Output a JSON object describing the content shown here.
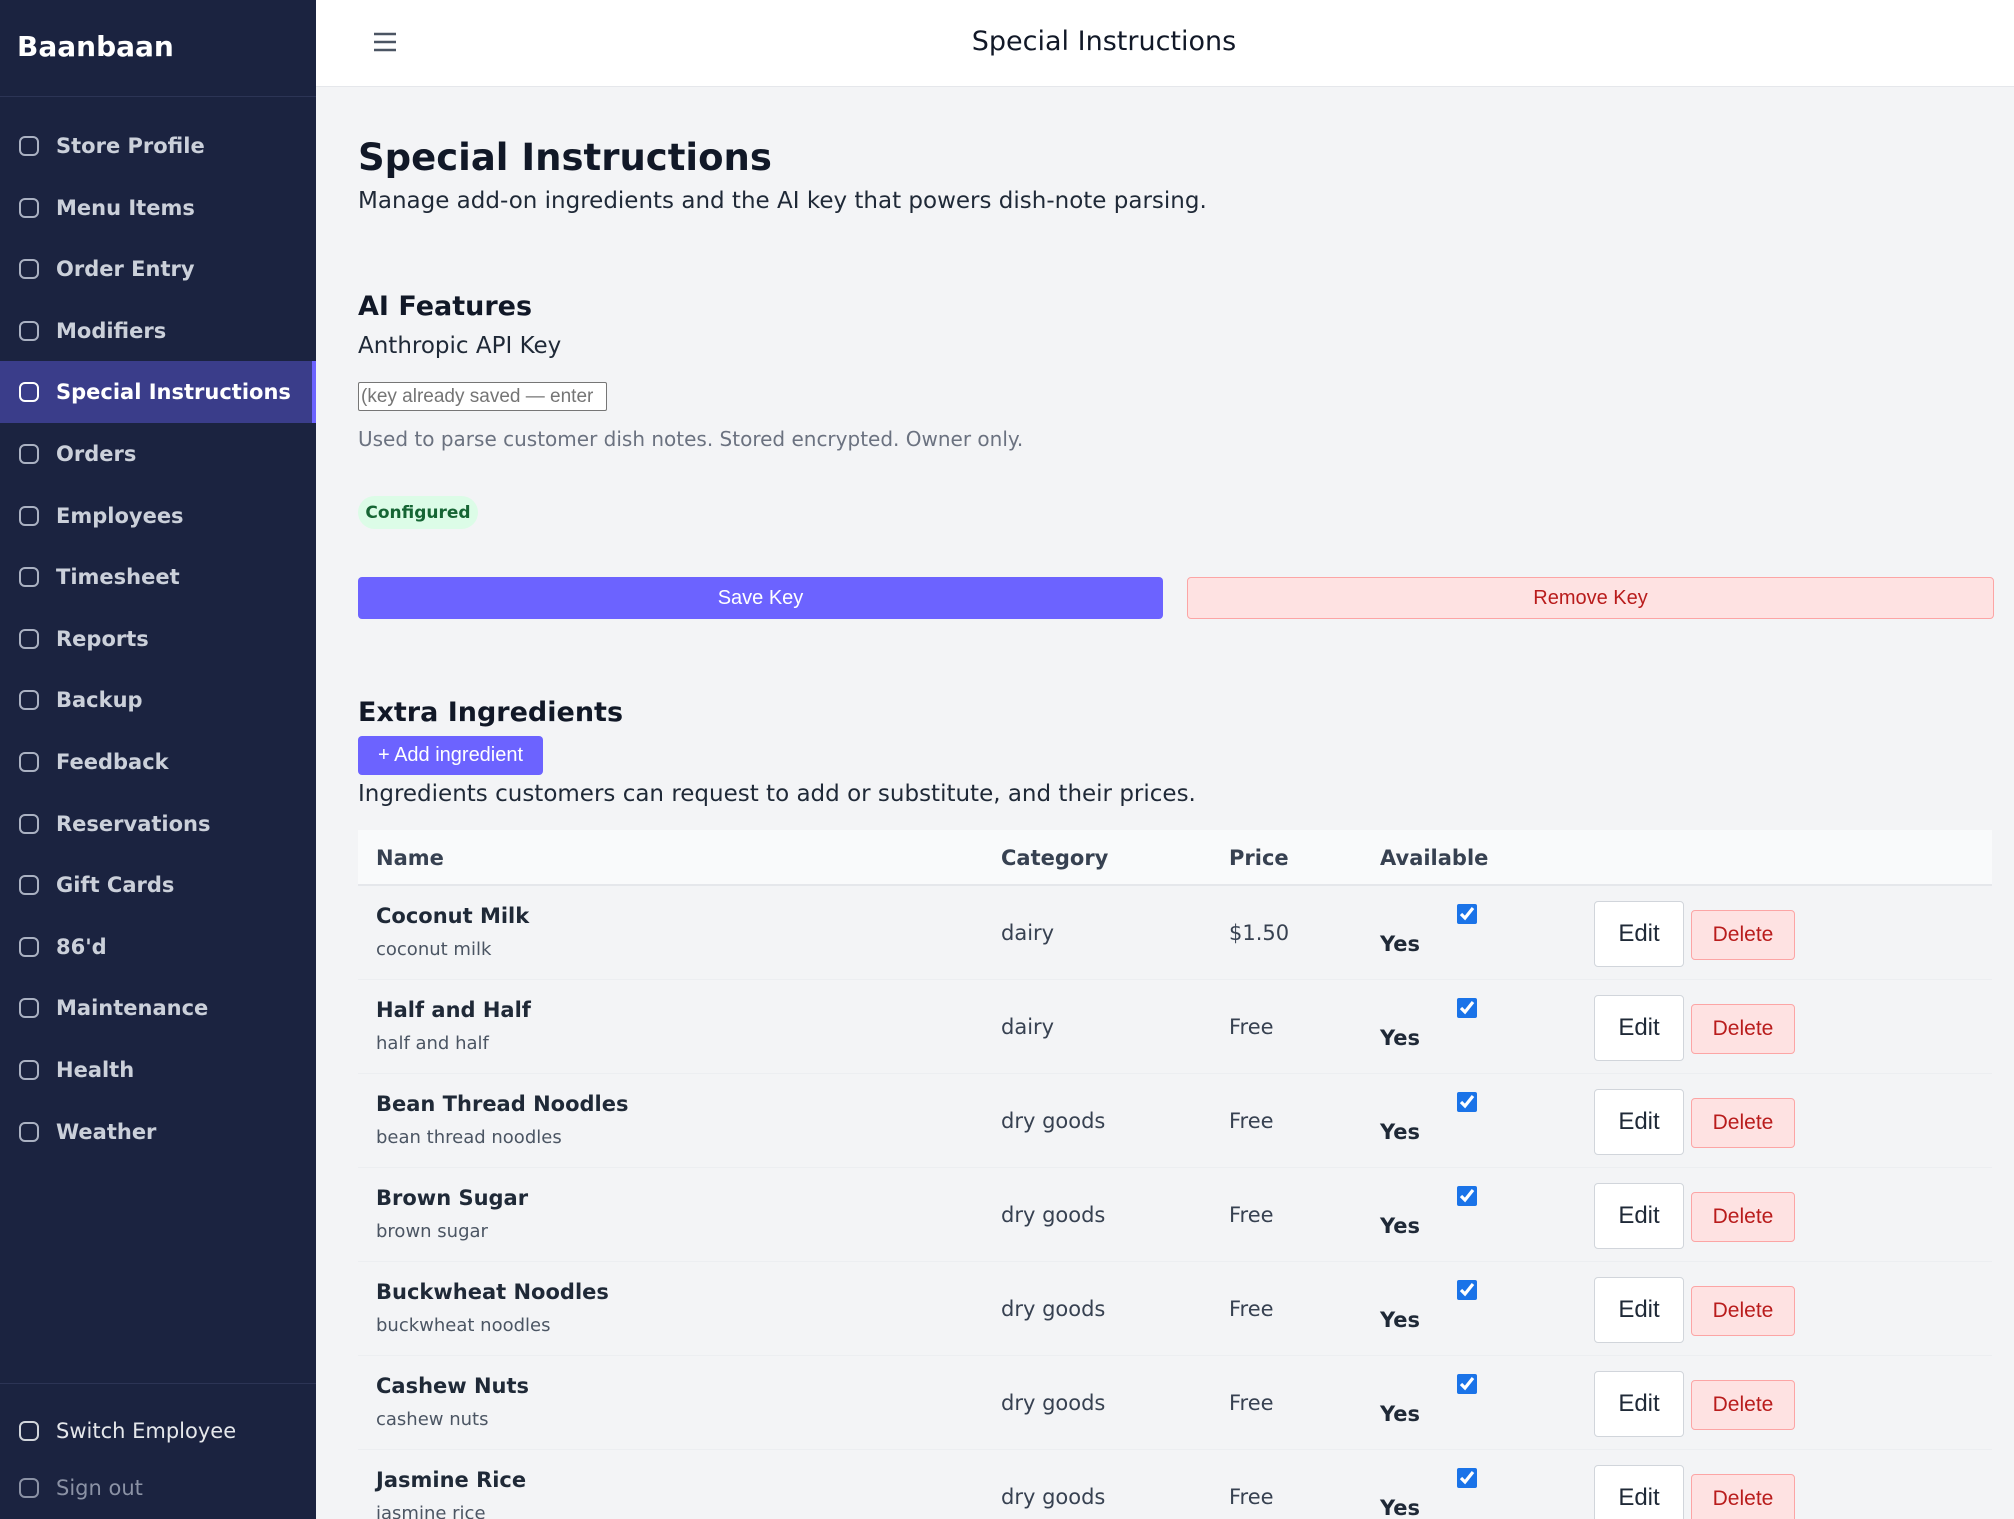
{
  "sidebar": {
    "brand": "Baanbaan",
    "nav": [
      "Store Profile",
      "Menu Items",
      "Order Entry",
      "Modifiers",
      "Special Instructions",
      "Orders",
      "Employees",
      "Timesheet",
      "Reports",
      "Backup",
      "Feedback",
      "Reservations",
      "Gift Cards",
      "86'd",
      "Maintenance",
      "Health",
      "Weather"
    ],
    "active": "Special Instructions",
    "footer": [
      "Switch Employee",
      "Sign out"
    ]
  },
  "header": {
    "title": "Special Instructions"
  },
  "page": {
    "title": "Special Instructions",
    "subtitle": "Manage add-on ingredients and the AI key that powers dish-note parsing."
  },
  "ai": {
    "title": "AI Features",
    "label": "Anthropic API Key",
    "placeholder": "(key already saved — enter",
    "help": "Used to parse customer dish notes. Stored encrypted. Owner only.",
    "status": "Configured",
    "save": "Save Key",
    "remove": "Remove Key"
  },
  "ingredients": {
    "title": "Extra Ingredients",
    "add": "+ Add ingredient",
    "description": "Ingredients customers can request to add or substitute, and their prices.",
    "headers": [
      "Name",
      "Category",
      "Price",
      "Available"
    ],
    "edit": "Edit",
    "delete": "Delete",
    "rows": [
      {
        "name": "Coconut Milk",
        "sub": "coconut milk",
        "category": "dairy",
        "price": "$1.50",
        "available": "Yes"
      },
      {
        "name": "Half and Half",
        "sub": "half and half",
        "category": "dairy",
        "price": "Free",
        "available": "Yes"
      },
      {
        "name": "Bean Thread Noodles",
        "sub": "bean thread noodles",
        "category": "dry goods",
        "price": "Free",
        "available": "Yes"
      },
      {
        "name": "Brown Sugar",
        "sub": "brown sugar",
        "category": "dry goods",
        "price": "Free",
        "available": "Yes"
      },
      {
        "name": "Buckwheat Noodles",
        "sub": "buckwheat noodles",
        "category": "dry goods",
        "price": "Free",
        "available": "Yes"
      },
      {
        "name": "Cashew Nuts",
        "sub": "cashew nuts",
        "category": "dry goods",
        "price": "Free",
        "available": "Yes"
      },
      {
        "name": "Jasmine Rice",
        "sub": "jasmine rice",
        "category": "dry goods",
        "price": "Free",
        "available": "Yes"
      }
    ]
  }
}
